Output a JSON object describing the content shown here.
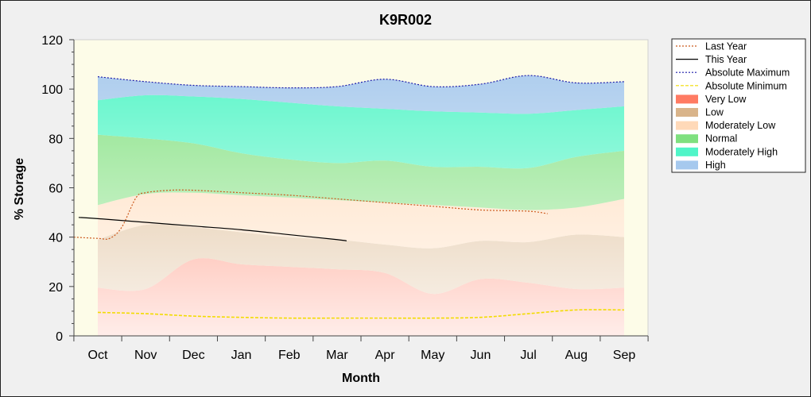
{
  "chart_data": {
    "type": "area",
    "title": "K9R002",
    "xlabel": "Month",
    "ylabel": "% Storage",
    "ylim": [
      0,
      120
    ],
    "yticks": [
      0,
      20,
      40,
      60,
      80,
      100,
      120
    ],
    "categories": [
      "Oct",
      "Nov",
      "Dec",
      "Jan",
      "Feb",
      "Mar",
      "Apr",
      "May",
      "Jun",
      "Jul",
      "Aug",
      "Sep"
    ],
    "grid": false,
    "legend_position": "right",
    "bands": [
      {
        "name": "Very Low",
        "color": "#ff7b63",
        "lower": [
          0,
          0,
          0,
          0,
          0,
          0,
          0,
          0,
          0,
          0,
          0,
          0
        ],
        "upper": [
          19.5,
          19,
          31,
          29,
          28,
          27,
          25.5,
          17,
          23,
          21.5,
          19,
          19.5
        ]
      },
      {
        "name": "Low",
        "color": "#d9b48a",
        "lower": [
          19.5,
          19,
          31,
          29,
          28,
          27,
          25.5,
          17,
          23,
          21.5,
          19,
          19.5
        ],
        "upper": [
          39,
          45,
          44,
          42,
          40,
          39,
          37,
          35.5,
          38.5,
          38,
          41,
          40
        ]
      },
      {
        "name": "Moderately Low",
        "color": "#ffd9b8",
        "lower": [
          39,
          45,
          44,
          42,
          40,
          39,
          37,
          35.5,
          38.5,
          38,
          41,
          40
        ],
        "upper": [
          53,
          57.5,
          58,
          57,
          56,
          55,
          54,
          53,
          52,
          51,
          52,
          55.5
        ]
      },
      {
        "name": "Normal",
        "color": "#7fe07f",
        "lower": [
          53,
          57.5,
          58,
          57,
          56,
          55,
          54,
          53,
          52,
          51,
          52,
          55.5
        ],
        "upper": [
          81.5,
          80,
          78,
          74,
          71.5,
          70,
          71,
          68.5,
          68.5,
          68,
          72.5,
          75
        ]
      },
      {
        "name": "Moderately High",
        "color": "#50f5c8",
        "lower": [
          81.5,
          80,
          78,
          74,
          71.5,
          70,
          71,
          68.5,
          68.5,
          68,
          72.5,
          75
        ],
        "upper": [
          95.5,
          97.5,
          97,
          96,
          94.5,
          93,
          92,
          91,
          90.5,
          90,
          91.5,
          93
        ]
      },
      {
        "name": "High",
        "color": "#a6c9ee",
        "lower": [
          95.5,
          97.5,
          97,
          96,
          94.5,
          93,
          92,
          91,
          90.5,
          90,
          91.5,
          93
        ],
        "upper": [
          105,
          103,
          101.5,
          101,
          100.5,
          101,
          104,
          101,
          102,
          105.5,
          102.5,
          103
        ]
      }
    ],
    "series": [
      {
        "name": "Last Year",
        "style": "dotted",
        "color": "#cc5a1e",
        "x": [
          -0.5,
          0,
          0.25,
          0.5,
          0.8,
          1,
          1.5,
          2,
          3,
          4,
          5,
          6,
          7,
          8,
          9,
          9.4
        ],
        "values": [
          40,
          39.5,
          39.5,
          44,
          56,
          58,
          59,
          59,
          58,
          57,
          55.5,
          54,
          52.5,
          51,
          50.5,
          49.5
        ]
      },
      {
        "name": "This Year",
        "style": "solid",
        "color": "#000000",
        "x": [
          -0.4,
          0,
          1,
          2,
          3,
          4,
          5,
          5.2
        ],
        "values": [
          48,
          47.5,
          46,
          44.5,
          43,
          41,
          39,
          38.5
        ]
      },
      {
        "name": "Absolute Maximum",
        "style": "dotted",
        "color": "#1c1caa",
        "x": [
          0,
          1,
          2,
          3,
          4,
          5,
          6,
          7,
          8,
          9,
          10,
          11
        ],
        "values": [
          105,
          103,
          101.5,
          101,
          100.5,
          101,
          104,
          101,
          102,
          105.5,
          102.5,
          103
        ]
      },
      {
        "name": "Absolute Minimum",
        "style": "dashed",
        "color": "#f2dc00",
        "x": [
          0,
          1,
          2,
          3,
          4,
          5,
          6,
          7,
          8,
          9,
          10,
          11
        ],
        "values": [
          9.5,
          9,
          8,
          7.5,
          7.2,
          7.2,
          7.2,
          7.2,
          7.5,
          9,
          10.5,
          10.5
        ]
      }
    ],
    "legend": [
      {
        "label": "Last Year",
        "kind": "line",
        "color": "#cc5a1e",
        "dash": "2,2"
      },
      {
        "label": "This Year",
        "kind": "line",
        "color": "#000000",
        "dash": ""
      },
      {
        "label": "Absolute Maximum",
        "kind": "line",
        "color": "#1c1caa",
        "dash": "2,2"
      },
      {
        "label": "Absolute Minimum",
        "kind": "line",
        "color": "#f2dc00",
        "dash": "4,2"
      },
      {
        "label": "Very Low",
        "kind": "area",
        "color": "#ff7b63"
      },
      {
        "label": "Low",
        "kind": "area",
        "color": "#d9b48a"
      },
      {
        "label": "Moderately Low",
        "kind": "area",
        "color": "#ffd9b8"
      },
      {
        "label": "Normal",
        "kind": "area",
        "color": "#7fe07f"
      },
      {
        "label": "Moderately High",
        "kind": "area",
        "color": "#50f5c8"
      },
      {
        "label": "High",
        "kind": "area",
        "color": "#a6c9ee"
      }
    ]
  }
}
